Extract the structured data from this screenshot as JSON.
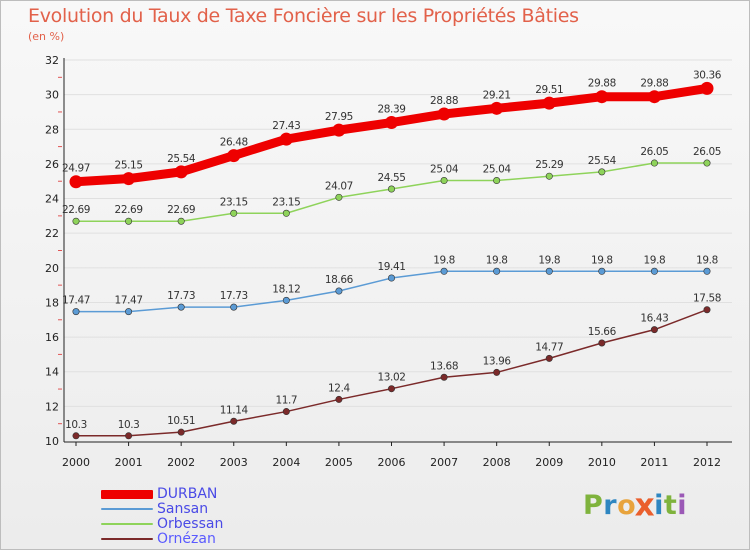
{
  "header": {
    "title": "Evolution du Taux de Taxe Foncière sur les Propriétés Bâties",
    "unit": "(en %)"
  },
  "logo": {
    "text": "Proxiti",
    "colors": [
      "#7fb33d",
      "#2e86c1",
      "#e8a33c",
      "#ea5f2d",
      "#2e86c1",
      "#7fb33d",
      "#9b59b6"
    ]
  },
  "colors": {
    "title": "#e2614a",
    "axis": "#222222",
    "tick_label": "#222222",
    "grid": "#e0e0e0",
    "axis_tick_marks": "#e05555"
  },
  "chart_data": {
    "type": "line",
    "title": "Evolution du Taux de Taxe Foncière sur les Propriétés Bâties",
    "ylabel": "(en %)",
    "xlabel": "",
    "x": [
      "2000",
      "2001",
      "2002",
      "2003",
      "2004",
      "2005",
      "2006",
      "2007",
      "2008",
      "2009",
      "2010",
      "2011",
      "2012"
    ],
    "ylim": [
      10,
      32
    ],
    "yticks": [
      10,
      12,
      14,
      16,
      18,
      20,
      22,
      24,
      26,
      28,
      30,
      32
    ],
    "grid": "horizontal",
    "legend_position": "bottom-left",
    "series": [
      {
        "name": "DURBAN",
        "color": "#ee0000",
        "emphasis": "thick",
        "values": [
          24.97,
          25.15,
          25.54,
          26.48,
          27.43,
          27.95,
          28.39,
          28.88,
          29.21,
          29.51,
          29.88,
          29.88,
          30.36
        ],
        "labels": [
          "24.97",
          "25.15",
          "25.54",
          "26.48",
          "27.43",
          "27.95",
          "28.39",
          "28.88",
          "29.21",
          "29.51",
          "29.88",
          "29.88",
          "30.36"
        ]
      },
      {
        "name": "Sansan",
        "color": "#5b9bd5",
        "emphasis": "normal",
        "values": [
          17.47,
          17.47,
          17.73,
          17.73,
          18.12,
          18.66,
          19.41,
          19.8,
          19.8,
          19.8,
          19.8,
          19.8,
          19.8
        ],
        "labels": [
          "17.47",
          "17.47",
          "17.73",
          "17.73",
          "18.12",
          "18.66",
          "19.41",
          "19.8",
          "19.8",
          "19.8",
          "19.8",
          "19.8",
          "19.8"
        ]
      },
      {
        "name": "Orbessan",
        "color": "#8ed35a",
        "emphasis": "normal",
        "values": [
          22.69,
          22.69,
          22.69,
          23.15,
          23.15,
          24.07,
          24.55,
          25.04,
          25.04,
          25.29,
          25.54,
          26.05,
          26.05
        ],
        "labels": [
          "22.69",
          "22.69",
          "22.69",
          "23.15",
          "23.15",
          "24.07",
          "24.55",
          "25.04",
          "25.04",
          "25.29",
          "25.54",
          "26.05",
          "26.05"
        ]
      },
      {
        "name": "Ornézan",
        "color": "#7b2a2a",
        "emphasis": "normal",
        "values": [
          10.3,
          10.3,
          10.51,
          11.14,
          11.7,
          12.4,
          13.02,
          13.68,
          13.96,
          14.77,
          15.66,
          16.43,
          17.58
        ],
        "labels": [
          "10.3",
          "10.3",
          "10.51",
          "11.14",
          "11.7",
          "12.4",
          "13.02",
          "13.68",
          "13.96",
          "14.77",
          "15.66",
          "16.43",
          "17.58"
        ]
      }
    ]
  }
}
